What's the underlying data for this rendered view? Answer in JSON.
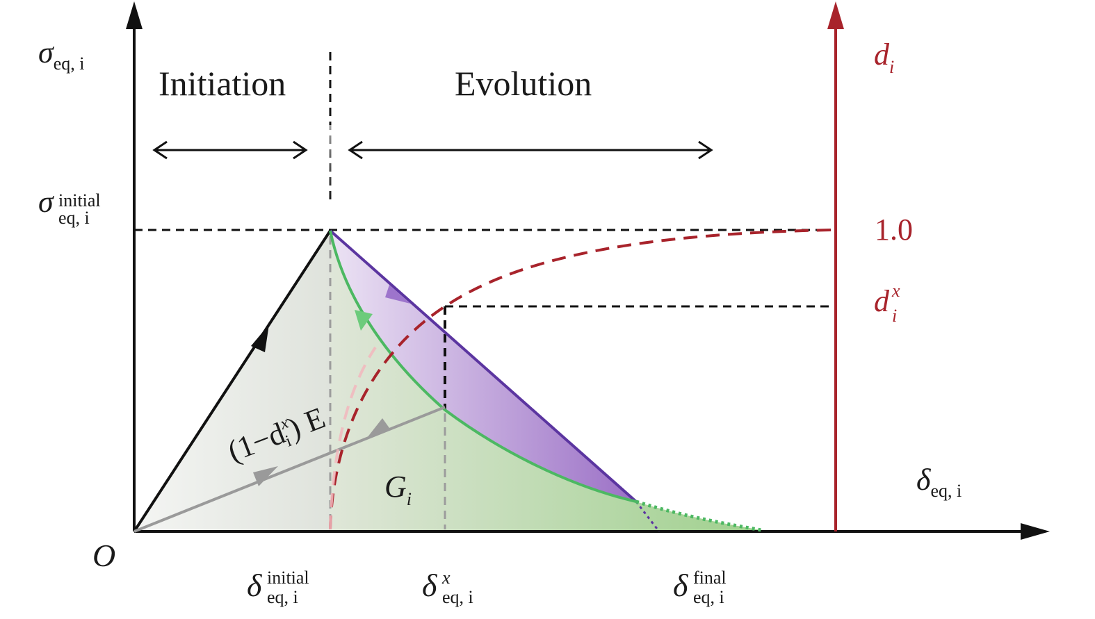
{
  "labels": {
    "y_axis_symbol": "σ",
    "y_axis_sub": "eq, i",
    "y_initial_symbol": "σ",
    "y_initial_sup": "initial",
    "y_initial_sub": "eq, i",
    "x_axis_symbol": "δ",
    "x_axis_sub": "eq, i",
    "origin": "O",
    "initiation": "Initiation",
    "evolution": "Evolution",
    "x_initial_symbol": "δ",
    "x_initial_sup": "initial",
    "x_initial_sub": "eq, i",
    "x_x_symbol": "δ",
    "x_x_sup": "x",
    "x_x_sub": "eq, i",
    "x_final_symbol": "δ",
    "x_final_sup": "final",
    "x_final_sub": "eq, i",
    "energy_symbol": "G",
    "energy_sub": "i",
    "unload_open": "(1−d",
    "unload_sup": "x",
    "unload_sub": "i",
    "unload_close": ") E"
  },
  "damage_axis": {
    "symbol": "d",
    "sub": "i",
    "tick_max": "1.0",
    "tick_x_symbol": "d",
    "tick_x_sup": "x",
    "tick_x_sub": "i"
  },
  "colors": {
    "axis": "#111111",
    "damage": "#a8232b",
    "linear_softening": "#6a3ea8",
    "exponential_softening": "#4cb862",
    "unloading": "#9a9a9a"
  }
}
